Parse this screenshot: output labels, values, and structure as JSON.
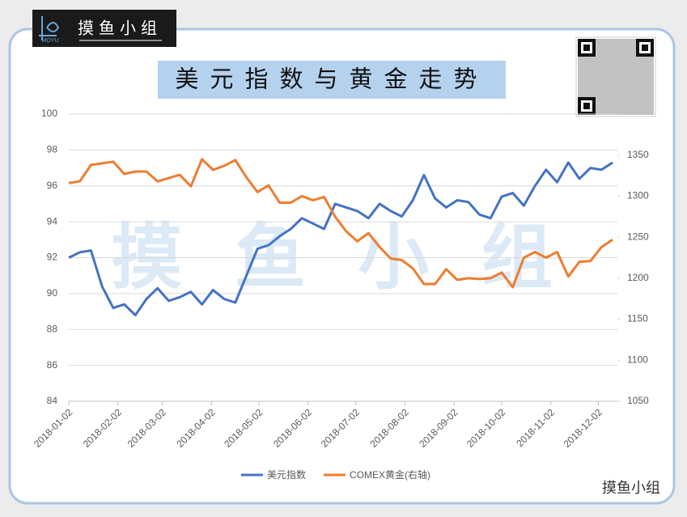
{
  "branding": {
    "logo_text": "摸鱼小组",
    "logo_sub": "MOYU",
    "watermark": "摸 鱼 小 组",
    "footer": "摸鱼小组"
  },
  "chart_data": {
    "type": "line",
    "title": "美元指数与黄金走势",
    "x": [
      "2018-01-02",
      "2018-01-09",
      "2018-01-16",
      "2018-01-23",
      "2018-01-30",
      "2018-02-06",
      "2018-02-13",
      "2018-02-20",
      "2018-02-27",
      "2018-03-06",
      "2018-03-13",
      "2018-03-20",
      "2018-03-27",
      "2018-04-03",
      "2018-04-10",
      "2018-04-17",
      "2018-04-24",
      "2018-05-01",
      "2018-05-08",
      "2018-05-15",
      "2018-05-22",
      "2018-05-29",
      "2018-06-05",
      "2018-06-12",
      "2018-06-19",
      "2018-06-26",
      "2018-07-03",
      "2018-07-10",
      "2018-07-17",
      "2018-07-24",
      "2018-07-31",
      "2018-08-07",
      "2018-08-14",
      "2018-08-21",
      "2018-08-28",
      "2018-09-04",
      "2018-09-11",
      "2018-09-18",
      "2018-09-25",
      "2018-10-02",
      "2018-10-09",
      "2018-10-16",
      "2018-10-23",
      "2018-10-30",
      "2018-11-06",
      "2018-11-13",
      "2018-11-20",
      "2018-11-27",
      "2018-12-04",
      "2018-12-11"
    ],
    "series": [
      {
        "name": "美元指数",
        "color": "#4472c4",
        "axis": "y",
        "values": [
          92.0,
          92.3,
          92.4,
          90.4,
          89.2,
          89.4,
          88.8,
          89.7,
          90.3,
          89.6,
          89.8,
          90.1,
          89.4,
          90.2,
          89.7,
          89.5,
          91.0,
          92.5,
          92.7,
          93.2,
          93.6,
          94.2,
          93.9,
          93.6,
          95.0,
          94.8,
          94.6,
          94.2,
          95.0,
          94.6,
          94.3,
          95.2,
          96.6,
          95.3,
          94.8,
          95.2,
          95.1,
          94.4,
          94.2,
          95.4,
          95.6,
          94.9,
          96.0,
          96.9,
          96.2,
          97.3,
          96.4,
          97.0,
          96.9,
          97.3
        ]
      },
      {
        "name": "COMEX黄金(右轴)",
        "color": "#ed7d31",
        "axis": "y2",
        "values": [
          1316,
          1318,
          1338,
          1340,
          1342,
          1327,
          1330,
          1330,
          1318,
          1322,
          1326,
          1312,
          1345,
          1332,
          1337,
          1344,
          1323,
          1305,
          1313,
          1292,
          1292,
          1300,
          1295,
          1299,
          1275,
          1257,
          1245,
          1255,
          1238,
          1224,
          1222,
          1212,
          1193,
          1193,
          1211,
          1198,
          1200,
          1199,
          1200,
          1207,
          1189,
          1225,
          1232,
          1225,
          1232,
          1202,
          1220,
          1221,
          1238,
          1247
        ]
      }
    ],
    "xlim": [
      "2018-01-02",
      "2018-12-14"
    ],
    "xticks": [
      "2018-01-02",
      "2018-02-02",
      "2018-03-02",
      "2018-04-02",
      "2018-05-02",
      "2018-06-02",
      "2018-07-02",
      "2018-08-02",
      "2018-09-02",
      "2018-10-02",
      "2018-11-02",
      "2018-12-02"
    ],
    "ylim": [
      84,
      100
    ],
    "yticks": [
      84,
      86,
      88,
      90,
      92,
      94,
      96,
      98,
      100
    ],
    "y2lim": [
      1050,
      1400
    ],
    "y2ticks": [
      1050,
      1100,
      1150,
      1200,
      1250,
      1300,
      1350
    ],
    "grid": true,
    "legend": "bottom"
  }
}
